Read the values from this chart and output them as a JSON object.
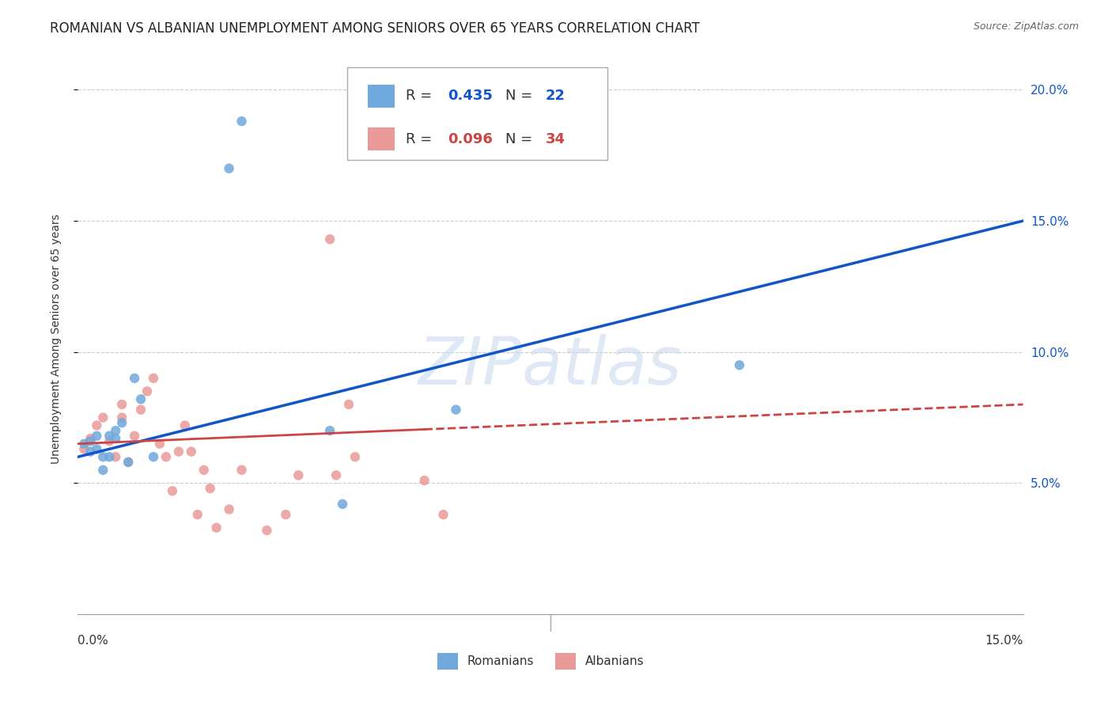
{
  "title": "ROMANIAN VS ALBANIAN UNEMPLOYMENT AMONG SENIORS OVER 65 YEARS CORRELATION CHART",
  "source": "Source: ZipAtlas.com",
  "ylabel": "Unemployment Among Seniors over 65 years",
  "xlim": [
    0.0,
    0.15
  ],
  "ylim": [
    0.0,
    0.21
  ],
  "romanian_color": "#6fa8dc",
  "albanian_color": "#ea9999",
  "trendline_romanian_color": "#1155cc",
  "trendline_albanian_color": "#cc4444",
  "watermark": "ZIPatlas",
  "romanians_label": "Romanians",
  "albanians_label": "Albanians",
  "romanian_R": 0.435,
  "albanian_R": 0.096,
  "romanian_N": 22,
  "albanian_N": 34,
  "romanian_x": [
    0.001,
    0.002,
    0.003,
    0.003,
    0.004,
    0.005,
    0.005,
    0.006,
    0.007,
    0.008,
    0.009,
    0.01,
    0.012,
    0.024,
    0.026,
    0.04,
    0.042,
    0.06,
    0.105,
    0.002,
    0.004,
    0.006
  ],
  "romanian_y": [
    0.065,
    0.066,
    0.063,
    0.068,
    0.055,
    0.068,
    0.06,
    0.07,
    0.073,
    0.058,
    0.09,
    0.082,
    0.06,
    0.17,
    0.188,
    0.07,
    0.042,
    0.078,
    0.095,
    0.062,
    0.06,
    0.067
  ],
  "albanian_x": [
    0.001,
    0.002,
    0.003,
    0.004,
    0.005,
    0.006,
    0.007,
    0.007,
    0.008,
    0.009,
    0.01,
    0.011,
    0.012,
    0.013,
    0.014,
    0.015,
    0.016,
    0.017,
    0.018,
    0.019,
    0.02,
    0.021,
    0.022,
    0.024,
    0.026,
    0.03,
    0.033,
    0.035,
    0.04,
    0.041,
    0.043,
    0.044,
    0.055,
    0.058
  ],
  "albanian_y": [
    0.063,
    0.067,
    0.072,
    0.075,
    0.066,
    0.06,
    0.075,
    0.08,
    0.058,
    0.068,
    0.078,
    0.085,
    0.09,
    0.065,
    0.06,
    0.047,
    0.062,
    0.072,
    0.062,
    0.038,
    0.055,
    0.048,
    0.033,
    0.04,
    0.055,
    0.032,
    0.038,
    0.053,
    0.143,
    0.053,
    0.08,
    0.06,
    0.051,
    0.038
  ],
  "grid_color": "#cccccc",
  "background_color": "#ffffff",
  "title_fontsize": 12,
  "axis_label_fontsize": 10,
  "tick_fontsize": 11,
  "marker_size": 80,
  "y_ticks": [
    0.05,
    0.1,
    0.15,
    0.2
  ],
  "y_tick_labels": [
    "5.0%",
    "10.0%",
    "15.0%",
    "20.0%"
  ],
  "trendline_rom_x0": 0.0,
  "trendline_rom_y0": 0.06,
  "trendline_rom_x1": 0.15,
  "trendline_rom_y1": 0.15,
  "trendline_alb_x0": 0.0,
  "trendline_alb_y0": 0.065,
  "trendline_alb_x1": 0.15,
  "trendline_alb_y1": 0.08,
  "trendline_alb_solid_end": 0.055,
  "trendline_rom_solid_end": 0.105
}
